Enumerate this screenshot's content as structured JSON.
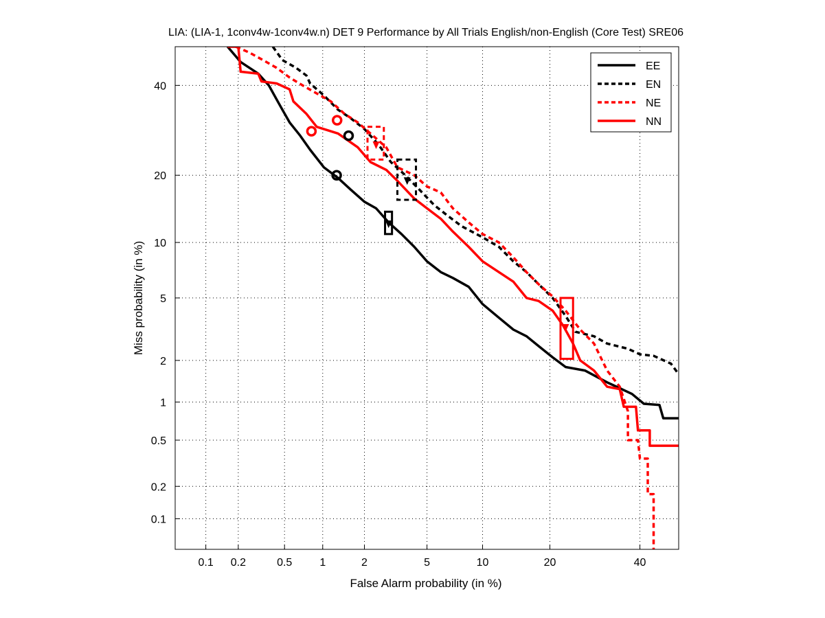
{
  "chart_data": {
    "type": "line",
    "scale": "normal-deviate (DET)",
    "title": "LIA: (LIA-1, 1conv4w-1conv4w.n) DET 9 Performance by All Trials English/non-English (Core Test) SRE06",
    "xlabel": "False Alarm probability (in %)",
    "ylabel": "Miss probability (in %)",
    "xlim": [
      0.05,
      50
    ],
    "ylim": [
      0.05,
      50
    ],
    "grid": true,
    "legend_position": "top-right",
    "xticks": [
      0.1,
      0.2,
      0.5,
      1,
      2,
      5,
      10,
      20,
      40
    ],
    "xtick_labels": [
      "0.1",
      "0.2",
      "0.5",
      "1",
      "2",
      "5",
      "10",
      "20",
      "40"
    ],
    "yticks": [
      0.1,
      0.2,
      0.5,
      1,
      2,
      5,
      10,
      20,
      40
    ],
    "ytick_labels": [
      "0.1",
      "0.2",
      "0.5",
      "1",
      "2",
      "5",
      "10",
      "20",
      "40"
    ],
    "series": [
      {
        "name": "EE",
        "color": "#000000",
        "dashed": false,
        "fa": [
          0.16,
          0.21,
          0.3,
          0.37,
          0.43,
          0.48,
          0.55,
          0.67,
          0.8,
          1.02,
          1.3,
          1.6,
          2,
          2.4,
          2.9,
          3.5,
          4.2,
          5,
          6,
          7,
          8.5,
          10,
          12,
          14,
          16,
          18,
          20.5,
          23,
          27,
          32,
          38,
          41,
          45,
          46,
          51
        ],
        "miss": [
          50,
          46,
          43,
          40,
          36.5,
          34,
          31,
          28,
          25,
          21.5,
          19.5,
          17.5,
          15.5,
          14.5,
          12.5,
          11,
          9.5,
          8,
          7,
          6.5,
          5.8,
          4.6,
          3.8,
          3.2,
          2.9,
          2.5,
          2.1,
          1.8,
          1.7,
          1.4,
          1.15,
          0.97,
          0.95,
          0.75,
          0.75
        ],
        "min_dcf": {
          "fa": 1.27,
          "miss": 20
        },
        "act_dcf": {
          "fa": 2.9,
          "miss": 12.3,
          "fa_range": [
            2.75,
            3.05
          ],
          "miss_range": [
            11,
            14
          ]
        }
      },
      {
        "name": "EN",
        "color": "#000000",
        "dashed": true,
        "fa": [
          0.4,
          0.48,
          0.62,
          0.75,
          0.8,
          1.02,
          1.3,
          1.6,
          2,
          2.5,
          3,
          3.7,
          4.5,
          5.5,
          6.5,
          7.8,
          10,
          12,
          14,
          16,
          18,
          20.5,
          23,
          25,
          29,
          32,
          37,
          40,
          43.5,
          48,
          50
        ],
        "miss": [
          50,
          46.5,
          44.5,
          42.5,
          40.5,
          37.5,
          34,
          32,
          29.5,
          26,
          22.5,
          20,
          17.5,
          15,
          13.5,
          12,
          10.6,
          9.5,
          8,
          7,
          6,
          5,
          3.9,
          3.1,
          2.9,
          2.6,
          2.4,
          2.2,
          2.15,
          1.9,
          1.6
        ],
        "min_dcf": {
          "fa": 1.55,
          "miss": 28
        },
        "act_dcf": {
          "fa": 3.8,
          "miss": 19,
          "fa_range": [
            3.3,
            4.3
          ],
          "miss_range": [
            15.8,
            23
          ]
        }
      },
      {
        "name": "NE",
        "color": "#ff0000",
        "dashed": true,
        "fa": [
          0.19,
          0.25,
          0.33,
          0.43,
          0.55,
          0.7,
          0.9,
          1.15,
          1.45,
          1.8,
          2.2,
          2.8,
          3.3,
          4.2,
          5,
          6,
          7,
          8.5,
          10,
          12,
          14,
          16,
          18,
          20.5,
          23,
          26,
          29,
          32,
          35,
          37,
          37,
          39.5,
          40,
          42,
          42,
          43.5,
          43.5
        ],
        "miss": [
          50,
          48.5,
          46.5,
          44.5,
          42,
          40,
          38,
          36,
          33,
          31,
          28.5,
          25.5,
          21.5,
          20,
          18,
          17,
          14.5,
          12.5,
          11,
          10,
          8.4,
          7,
          6,
          5.1,
          4.2,
          3.2,
          2.6,
          1.7,
          1.3,
          0.85,
          0.5,
          0.5,
          0.35,
          0.35,
          0.17,
          0.17,
          0.05
        ],
        "min_dcf": {
          "fa": 1.28,
          "miss": 31.5
        },
        "act_dcf": {
          "fa": 2.4,
          "miss": 26,
          "fa_range": [
            2.1,
            2.7
          ],
          "miss_range": [
            23,
            30
          ]
        }
      },
      {
        "name": "NN",
        "color": "#ff0000",
        "dashed": false,
        "fa": [
          0.16,
          0.2,
          0.21,
          0.3,
          0.32,
          0.43,
          0.55,
          0.59,
          0.75,
          0.9,
          1.3,
          1.8,
          2.2,
          2.8,
          3.3,
          4.2,
          5,
          6,
          7,
          8.5,
          10,
          12,
          14,
          16,
          18,
          20.5,
          22.5,
          24.5,
          26,
          29,
          32,
          35,
          36,
          39,
          39.5,
          42.5,
          42.5,
          51
        ],
        "miss": [
          50,
          50,
          43.5,
          43,
          41,
          40.5,
          39,
          36,
          33,
          30,
          28.5,
          25.5,
          22.5,
          21,
          19,
          16,
          14.5,
          13,
          11.3,
          9.5,
          8,
          7,
          6.2,
          5,
          4.8,
          4.2,
          3.4,
          2.6,
          2,
          1.7,
          1.3,
          1.25,
          0.92,
          0.92,
          0.6,
          0.6,
          0.45,
          0.45
        ],
        "min_dcf": {
          "fa": 0.82,
          "miss": 29
        },
        "act_dcf": {
          "fa": 23,
          "miss": 3.3,
          "fa_range": [
            22,
            24.5
          ],
          "miss_range": [
            2.05,
            5
          ]
        }
      }
    ]
  }
}
